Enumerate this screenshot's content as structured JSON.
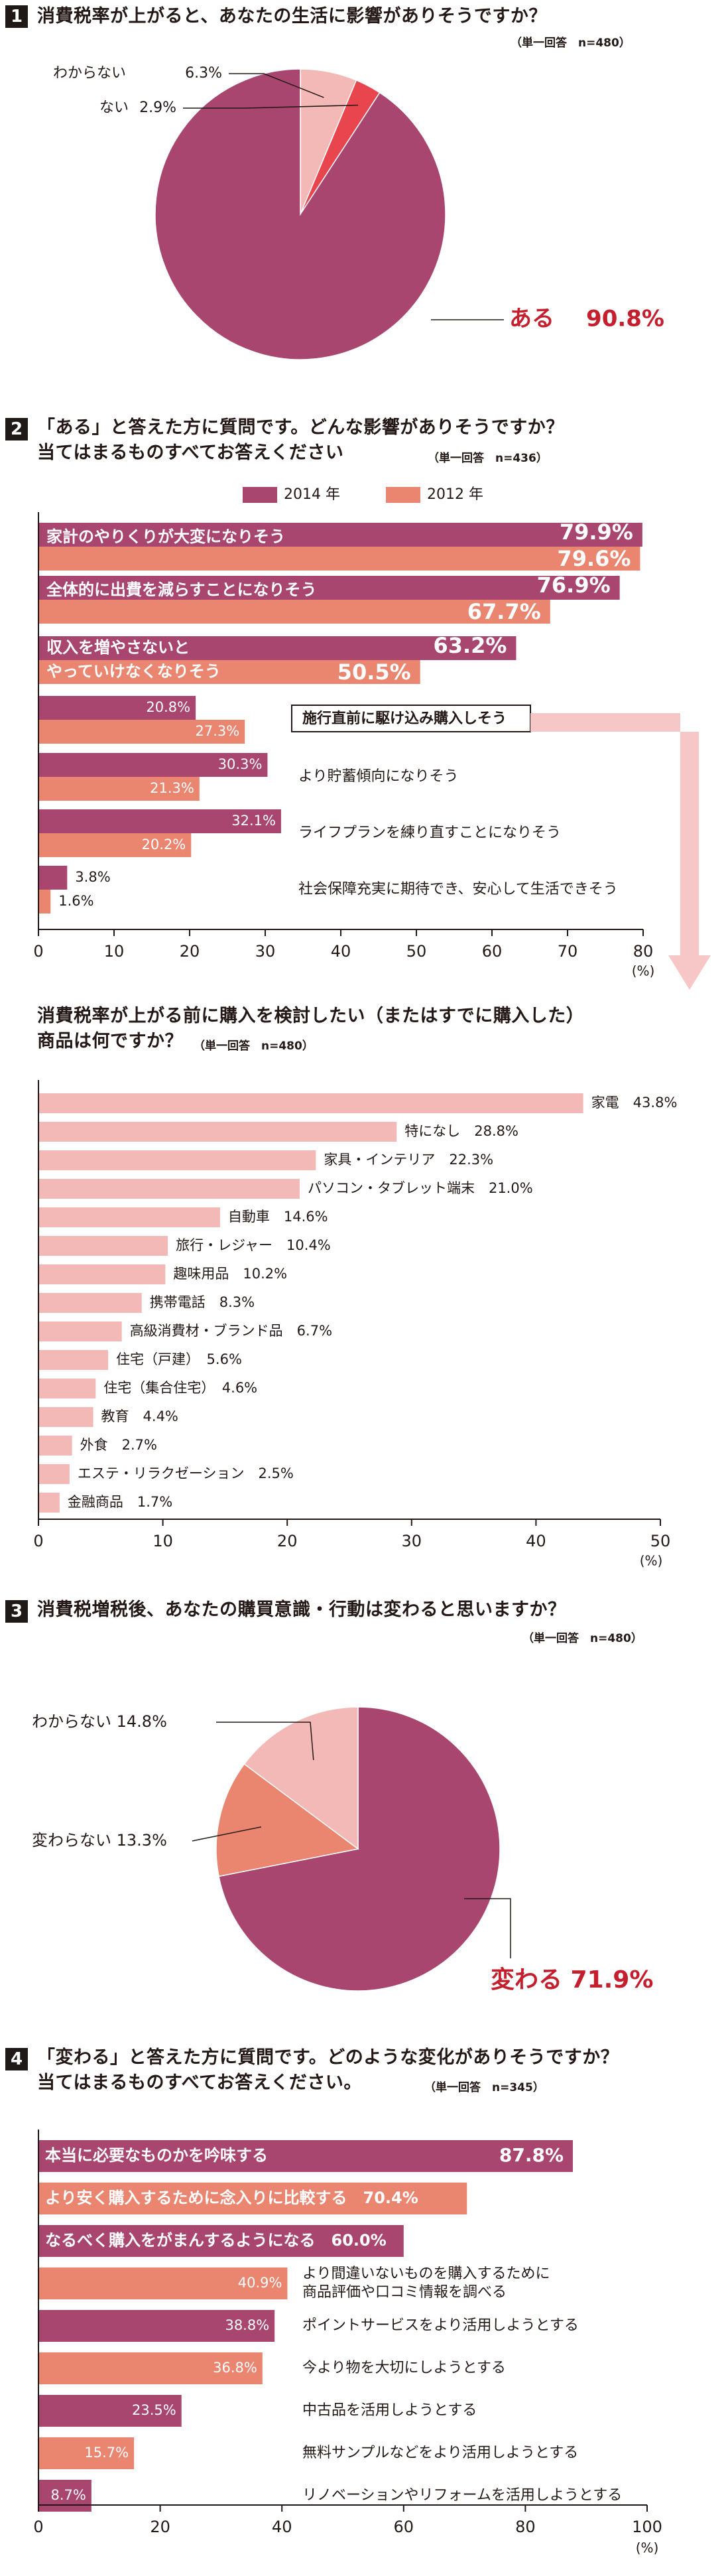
{
  "colors": {
    "c2014": "#a84670",
    "c2012": "#ea8570",
    "plum": "#a84670",
    "pink": "#f3b9b7",
    "red": "#e8454e",
    "salmon": "#ea8570",
    "hl": "#c51f2e"
  },
  "q1": {
    "num": "1",
    "title": "消費税率が上がると、あなたの生活に影響がありそうですか？",
    "meta": "（単一回答　n=480）"
  },
  "q2": {
    "num": "2",
    "title_1": "「ある」と答えた方に質問です。どんな影響がありそうですか？",
    "title_2": "当てはまるものすべてお答えください",
    "meta": "（単一回答　n=436）"
  },
  "q2b": {
    "title_1": "消費税率が上がる前に購入を検討したい（またはすでに購入した）",
    "title_2": "商品は何ですか？",
    "meta": "（単一回答　n=480）"
  },
  "q3": {
    "num": "3",
    "title": "消費税増税後、あなたの購買意識・行動は変わると思いますか？",
    "meta": "（単一回答　n=480）"
  },
  "q4": {
    "num": "4",
    "title_1": "「変わる」と答えた方に質問です。どのような変化がありそうですか？",
    "title_2": "当てはまるものすべてお答えください。",
    "meta": "（単一回答　n=345）"
  },
  "chart_data": [
    {
      "id": "pie1",
      "type": "pie",
      "title": "消費税率が上がると、あなたの生活に影響がありそうですか？",
      "slices": [
        {
          "label": "ある",
          "value": 90.8,
          "display": "90.8%",
          "color": "#a84670"
        },
        {
          "label": "ない",
          "value": 2.9,
          "display": "2.9%",
          "color": "#e8454e"
        },
        {
          "label": "わからない",
          "value": 6.3,
          "display": "6.3%",
          "color": "#f3b9b7"
        }
      ]
    },
    {
      "id": "bar2",
      "type": "bar",
      "orientation": "horizontal",
      "xlim": [
        0,
        80
      ],
      "xticks": [
        0,
        10,
        20,
        30,
        40,
        50,
        60,
        70,
        80
      ],
      "unit": "(%)",
      "series": [
        {
          "name": "2014 年"
        },
        {
          "name": "2012 年"
        }
      ],
      "categories": [
        "家計のやりくりが大変になりそう",
        "全体的に出費を減らすことになりそう",
        "収入を増やさないと\nやっていけなくなりそう",
        "施行直前に駆け込み購入しそう",
        "より貯蓄傾向になりそう",
        "ライフプランを練り直すことになりそう",
        "社会保障充実に期待でき、安心して生活できそう"
      ],
      "values_2014": [
        79.9,
        76.9,
        63.2,
        20.8,
        30.3,
        32.1,
        3.8
      ],
      "values_2012": [
        79.6,
        67.7,
        50.5,
        27.3,
        21.3,
        20.2,
        1.6
      ],
      "labels_2014": [
        "79.9%",
        "76.9%",
        "63.2%",
        "20.8%",
        "30.3%",
        "32.1%",
        "3.8%"
      ],
      "labels_2012": [
        "79.6%",
        "67.7%",
        "50.5%",
        "27.3%",
        "21.3%",
        "20.2%",
        "1.6%"
      ]
    },
    {
      "id": "bar2b",
      "type": "bar",
      "orientation": "horizontal",
      "xlim": [
        0,
        50
      ],
      "xticks": [
        0,
        10,
        20,
        30,
        40,
        50
      ],
      "unit": "(%)",
      "categories": [
        "家電",
        "特になし",
        "家具・インテリア",
        "パソコン・タブレット端末",
        "自動車",
        "旅行・レジャー",
        "趣味用品",
        "携帯電話",
        "高級消費材・ブランド品",
        "住宅（戸建）",
        "住宅（集合住宅）",
        "教育",
        "外食",
        "エステ・リラクゼーション",
        "金融商品"
      ],
      "values": [
        43.8,
        28.8,
        22.3,
        21.0,
        14.6,
        10.4,
        10.2,
        8.3,
        6.7,
        5.6,
        4.6,
        4.4,
        2.7,
        2.5,
        1.7
      ],
      "labels": [
        "43.8%",
        "28.8%",
        "22.3%",
        "21.0%",
        "14.6%",
        "10.4%",
        "10.2%",
        "8.3%",
        "6.7%",
        "5.6%",
        "4.6%",
        "4.4%",
        "2.7%",
        "2.5%",
        "1.7%"
      ]
    },
    {
      "id": "pie3",
      "type": "pie",
      "title": "消費税増税後、あなたの購買意識・行動は変わると思いますか？",
      "slices": [
        {
          "label": "変わる",
          "value": 71.9,
          "display": "71.9%",
          "color": "#a84670"
        },
        {
          "label": "変わらない",
          "value": 13.3,
          "display": "13.3%",
          "color": "#ea8570"
        },
        {
          "label": "わからない",
          "value": 14.8,
          "display": "14.8%",
          "color": "#f3b9b7"
        }
      ]
    },
    {
      "id": "bar4",
      "type": "bar",
      "orientation": "horizontal",
      "xlim": [
        0,
        100
      ],
      "xticks": [
        0,
        20,
        40,
        60,
        80,
        100
      ],
      "unit": "(%)",
      "categories": [
        "本当に必要なものかを吟味する",
        "より安く購入するために念入りに比較する",
        "なるべく購入をがまんするようになる",
        "より間違いないものを購入するために\n商品評価や口コミ情報を調べる",
        "ポイントサービスをより活用しようとする",
        "今より物を大切にしようとする",
        "中古品を活用しようとする",
        "無料サンプルなどをより活用しようとする",
        "リノベーションやリフォームを活用しようとする"
      ],
      "values": [
        87.8,
        70.4,
        60.0,
        40.9,
        38.8,
        36.8,
        23.5,
        15.7,
        8.7
      ],
      "labels": [
        "87.8%",
        "70.4%",
        "60.0%",
        "40.9%",
        "38.8%",
        "36.8%",
        "23.5%",
        "15.7%",
        "8.7%"
      ]
    }
  ]
}
